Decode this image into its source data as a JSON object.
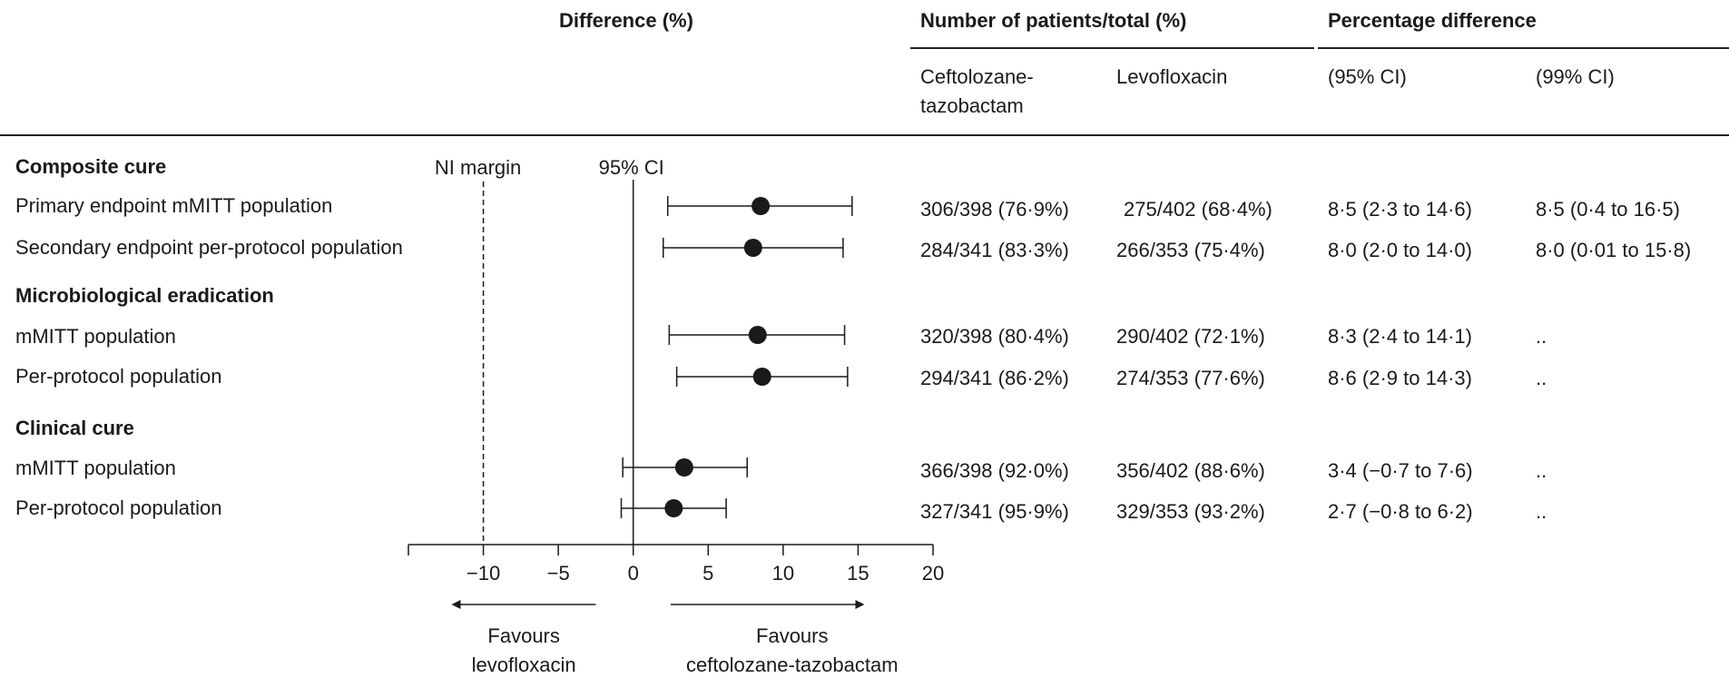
{
  "headers": {
    "difference": "Difference (%)",
    "patients": "Number of patients/total (%)",
    "pctdiff": "Percentage difference",
    "col_cef_1": "Ceftolozane-",
    "col_cef_2": "tazobactam",
    "col_levo": "Levofloxacin",
    "col_ci95": "(95% CI)",
    "col_ci99": "(99% CI)"
  },
  "sections": [
    {
      "label": "Composite cure"
    },
    {
      "label": "Microbiological eradication"
    },
    {
      "label": "Clinical cure"
    }
  ],
  "rows": [
    {
      "label": "Primary endpoint mMITT population",
      "cef": "306/398 (76·9%)",
      "levo": "275/402 (68·4%)",
      "ci95": "8·5 (2·3 to 14·6)",
      "ci99": "8·5 (0·4 to 16·5)"
    },
    {
      "label": "Secondary endpoint per-protocol population",
      "cef": "284/341 (83·3%)",
      "levo": "266/353 (75·4%)",
      "ci95": "8·0 (2·0 to 14·0)",
      "ci99": "8·0 (0·01 to 15·8)"
    },
    {
      "label": "mMITT population",
      "cef": "320/398 (80·4%)",
      "levo": "290/402 (72·1%)",
      "ci95": "8·3 (2·4 to 14·1)",
      "ci99": ".."
    },
    {
      "label": "Per-protocol population",
      "cef": "294/341 (86·2%)",
      "levo": "274/353 (77·6%)",
      "ci95": "8·6 (2·9 to 14·3)",
      "ci99": ".."
    },
    {
      "label": "mMITT population",
      "cef": "366/398 (92·0%)",
      "levo": "356/402 (88·6%)",
      "ci95": "3·4 (−0·7 to 7·6)",
      "ci99": ".."
    },
    {
      "label": "Per-protocol population",
      "cef": "327/341 (95·9%)",
      "levo": "329/353 (93·2%)",
      "ci95": "2·7 (−0·8 to 6·2)",
      "ci99": ".."
    }
  ],
  "chart_data": {
    "type": "forest",
    "xlim": [
      -15,
      20
    ],
    "xticks": [
      -10,
      -5,
      0,
      5,
      10,
      15,
      20
    ],
    "xtick_labels": [
      "−10",
      "−5",
      "0",
      "5",
      "10",
      "15",
      "20"
    ],
    "ni_margin": -10,
    "ni_label": "NI margin",
    "ci_label": "95% CI",
    "left_arrow_label": [
      "Favours",
      "levofloxacin"
    ],
    "right_arrow_label": [
      "Favours",
      "ceftolozane-tazobactam"
    ],
    "points": [
      {
        "estimate": 8.5,
        "low": 2.3,
        "high": 14.6
      },
      {
        "estimate": 8.0,
        "low": 2.0,
        "high": 14.0
      },
      {
        "estimate": 8.3,
        "low": 2.4,
        "high": 14.1
      },
      {
        "estimate": 8.6,
        "low": 2.9,
        "high": 14.3
      },
      {
        "estimate": 3.4,
        "low": -0.7,
        "high": 7.6
      },
      {
        "estimate": 2.7,
        "low": -0.8,
        "high": 6.2
      }
    ]
  }
}
